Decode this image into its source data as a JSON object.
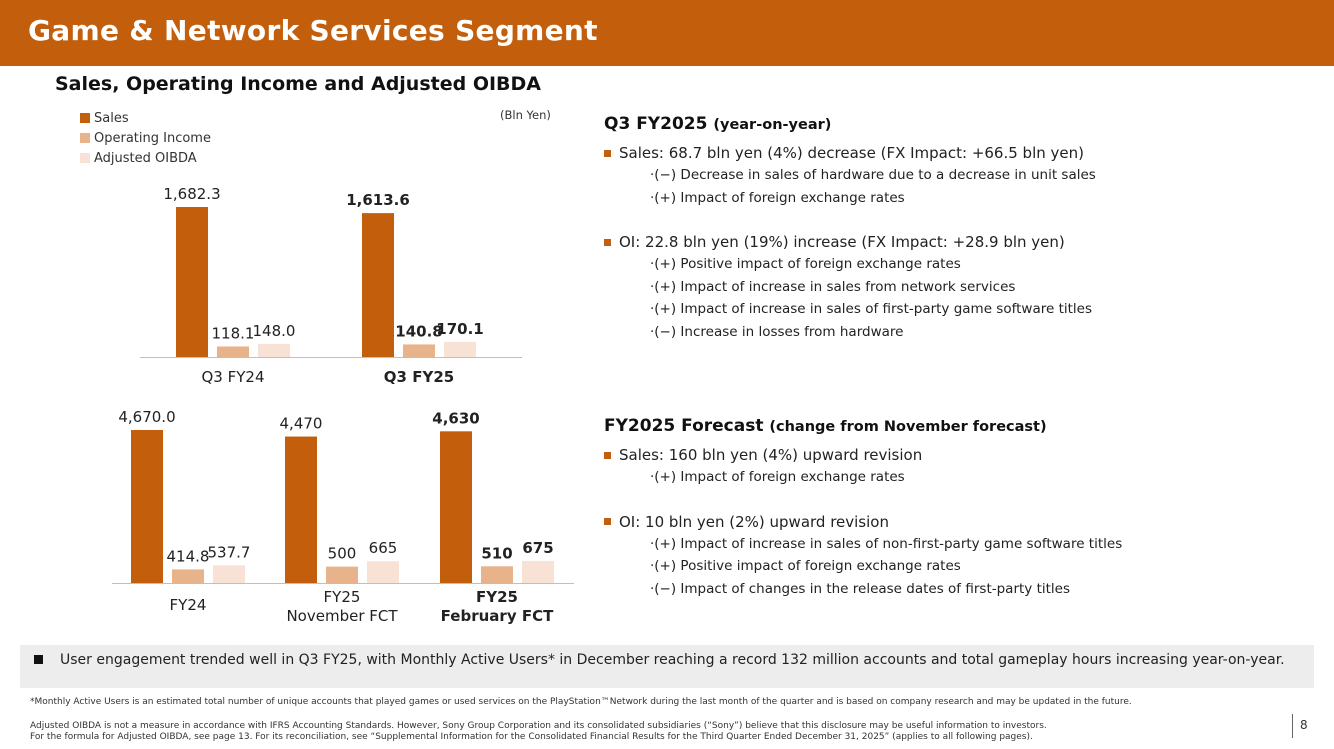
{
  "header": {
    "title": "Game & Network Services Segment"
  },
  "subtitle": "Sales, Operating Income and Adjusted OIBDA",
  "unit_label": "(Bln Yen)",
  "legend": [
    {
      "label": "Sales",
      "color": "#c25e0c"
    },
    {
      "label": "Operating Income",
      "color": "#e8b28a"
    },
    {
      "label": "Adjusted OIBDA",
      "color": "#f8e2d5"
    }
  ],
  "chart_data": [
    {
      "type": "bar",
      "categories": [
        "Q3 FY24",
        "Q3 FY25"
      ],
      "bold_categories": [
        "Q3 FY25"
      ],
      "series": [
        {
          "name": "Sales",
          "values": [
            1682.3,
            1613.6
          ],
          "labels": [
            "1,682.3",
            "1,613.6"
          ]
        },
        {
          "name": "Operating Income",
          "values": [
            118.1,
            140.8
          ],
          "labels": [
            "118.1",
            "140.8"
          ]
        },
        {
          "name": "Adjusted OIBDA",
          "values": [
            148.0,
            170.1
          ],
          "labels": [
            "148.0",
            "170.1"
          ]
        }
      ],
      "unit": "Bln Yen"
    },
    {
      "type": "bar",
      "categories": [
        "FY24",
        "FY25\nNovember FCT",
        "FY25\nFebruary FCT"
      ],
      "bold_categories": [
        "FY25\nFebruary FCT"
      ],
      "series": [
        {
          "name": "Sales",
          "values": [
            4670.0,
            4470,
            4630
          ],
          "labels": [
            "4,670.0",
            "4,470",
            "4,630"
          ]
        },
        {
          "name": "Operating Income",
          "values": [
            414.8,
            500,
            510
          ],
          "labels": [
            "414.8",
            "500",
            "510"
          ]
        },
        {
          "name": "Adjusted OIBDA",
          "values": [
            537.7,
            665,
            675
          ],
          "labels": [
            "537.7",
            "665",
            "675"
          ]
        }
      ],
      "unit": "Bln Yen"
    }
  ],
  "q3": {
    "heading": "Q3 FY2025",
    "heading_sub": "(year-on-year)",
    "sales": "Sales: 68.7 bln yen (4%) decrease (FX Impact: +66.5 bln yen)",
    "sales_details": [
      "·(−) Decrease in sales of hardware due to a decrease in unit sales",
      "·(+) Impact of foreign exchange rates"
    ],
    "oi": "OI: 22.8 bln yen (19%) increase (FX Impact: +28.9 bln yen)",
    "oi_details": [
      "·(+) Positive impact of foreign exchange rates",
      "·(+) Impact of increase in sales from network services",
      "·(+) Impact of increase in sales of first-party game software titles",
      "·(−) Increase in losses from hardware"
    ]
  },
  "forecast": {
    "heading": "FY2025 Forecast",
    "heading_sub": "(change from November forecast)",
    "sales": "Sales: 160 bln yen (4%) upward revision",
    "sales_details": [
      "·(+) Impact of foreign exchange rates"
    ],
    "oi": "OI: 10 bln yen (2%) upward revision",
    "oi_details": [
      "·(+) Impact of increase in sales of non-first-party game software titles",
      "·(+) Positive impact of foreign exchange rates",
      "·(−) Impact of changes in the release dates of first-party titles"
    ]
  },
  "engagement": "User engagement trended well in Q3 FY25, with Monthly Active Users* in December reaching a record 132 million accounts and total gameplay hours increasing year-on-year.",
  "footnotes": {
    "mau": "*Monthly Active Users is an estimated total number of unique accounts that played games or used services on the PlayStation™Network during the last month of the quarter and is based on company research and may be updated in the future.",
    "oibda_1": "Adjusted OIBDA is not a measure in accordance with IFRS Accounting Standards. However, Sony Group Corporation and its consolidated subsidiaries (“Sony”) believe that this disclosure may be useful information to investors.",
    "oibda_2": "For the formula for Adjusted OIBDA, see page 13. For its reconciliation, see “Supplemental Information for the Consolidated Financial Results for the Third Quarter Ended December 31, 2025” (applies to all following pages)."
  },
  "page_number": "8"
}
